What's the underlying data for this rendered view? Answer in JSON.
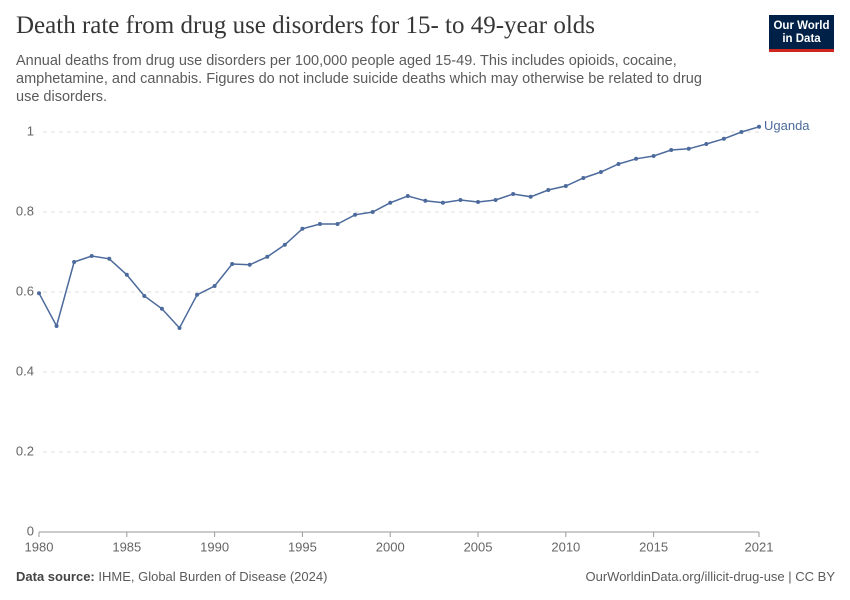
{
  "chart_data": {
    "type": "line",
    "title": "Death rate from drug use disorders for 15- to 49-year olds",
    "subtitle": "Annual deaths from drug use disorders per 100,000 people aged 15-49. This includes opioids, cocaine, amphetamine, and cannabis. Figures do not include suicide deaths which may otherwise be related to drug use disorders.",
    "logo": [
      "Our World",
      "in Data"
    ],
    "source_label": "Data source:",
    "source": "IHME, Global Burden of Disease (2024)",
    "footer": "OurWorldinData.org/illicit-drug-use | CC BY",
    "x": [
      1980,
      1981,
      1982,
      1983,
      1984,
      1985,
      1986,
      1987,
      1988,
      1989,
      1990,
      1991,
      1992,
      1993,
      1994,
      1995,
      1996,
      1997,
      1998,
      1999,
      2000,
      2001,
      2002,
      2003,
      2004,
      2005,
      2006,
      2007,
      2008,
      2009,
      2010,
      2011,
      2012,
      2013,
      2014,
      2015,
      2016,
      2017,
      2018,
      2019,
      2020,
      2021
    ],
    "series": [
      {
        "name": "Uganda",
        "color": "#4c6a9c",
        "values": [
          0.597,
          0.515,
          0.675,
          0.69,
          0.683,
          0.643,
          0.59,
          0.558,
          0.51,
          0.593,
          0.615,
          0.67,
          0.668,
          0.688,
          0.718,
          0.758,
          0.77,
          0.77,
          0.793,
          0.8,
          0.823,
          0.84,
          0.828,
          0.823,
          0.83,
          0.825,
          0.83,
          0.845,
          0.838,
          0.855,
          0.865,
          0.885,
          0.9,
          0.92,
          0.933,
          0.94,
          0.955,
          0.958,
          0.97,
          0.983,
          1.0,
          1.013
        ]
      }
    ],
    "xlim": [
      1980,
      2021
    ],
    "xticks": [
      1980,
      1985,
      1990,
      1995,
      2000,
      2005,
      2010,
      2015,
      2021
    ],
    "ylim": [
      0,
      1.02
    ],
    "yticks": [
      0,
      0.2,
      0.4,
      0.6,
      0.8,
      1
    ],
    "grid": true
  }
}
